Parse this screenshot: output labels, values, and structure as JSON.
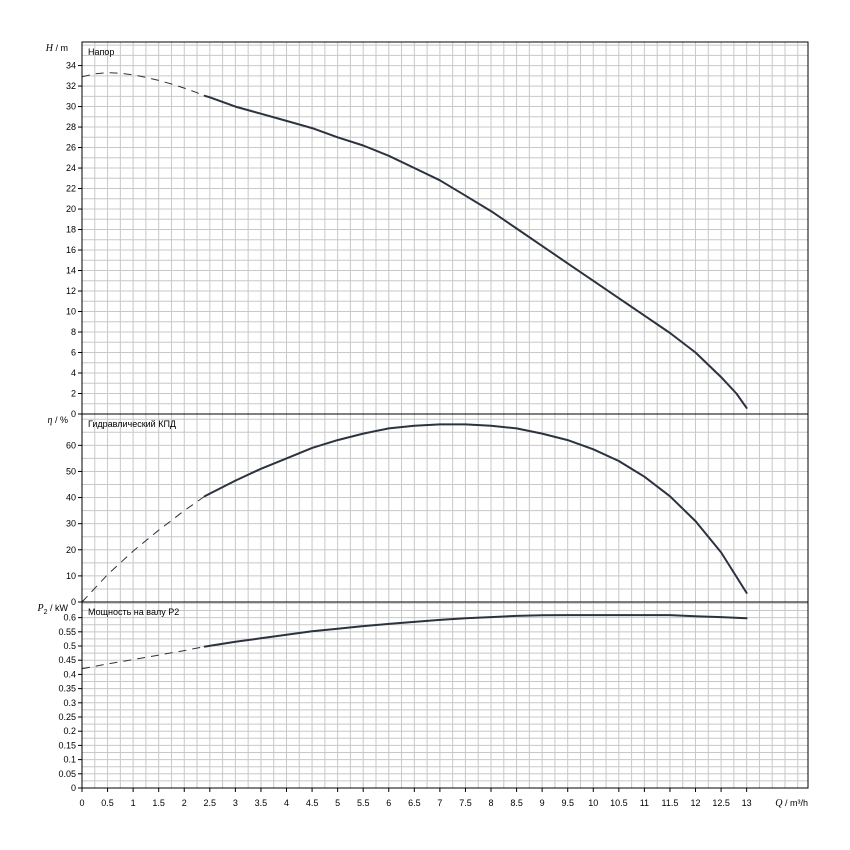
{
  "chart_data": {
    "type": "line",
    "x": {
      "label_symbol": "Q",
      "label_unit": "m³/h",
      "range": [
        0,
        14.2
      ],
      "ticks": [
        0,
        0.5,
        1,
        1.5,
        2,
        2.5,
        3,
        3.5,
        4,
        4.5,
        5,
        5.5,
        6,
        6.5,
        7,
        7.5,
        8,
        8.5,
        9,
        9.5,
        10,
        10.5,
        11,
        11.5,
        12,
        12.5,
        13
      ],
      "tick_labels": [
        "0",
        "0.5",
        "1",
        "1.5",
        "2",
        "2.5",
        "3",
        "3.5",
        "4",
        "4.5",
        "5",
        "5.5",
        "6",
        "6.5",
        "7",
        "7.5",
        "8",
        "8.5",
        "9",
        "9.5",
        "10",
        "10.5",
        "11",
        "11.5",
        "12",
        "12.5",
        "13"
      ]
    },
    "grid": true,
    "panels": [
      {
        "key": "head",
        "title": "Напор",
        "ylabel_symbol": "H",
        "ylabel_unit": "m",
        "ylim": [
          0,
          36.3
        ],
        "yticks": [
          0,
          2,
          4,
          6,
          8,
          10,
          12,
          14,
          16,
          18,
          20,
          22,
          24,
          26,
          28,
          30,
          32,
          34
        ],
        "ytick_labels": [
          "0",
          "2",
          "4",
          "6",
          "8",
          "10",
          "12",
          "14",
          "16",
          "18",
          "20",
          "22",
          "24",
          "26",
          "28",
          "30",
          "32",
          "34"
        ],
        "series": [
          {
            "style": "dashed",
            "x": [
              0,
              0.25,
              0.5,
              0.75,
              1.0,
              1.25,
              1.5,
              1.75,
              2.0,
              2.25,
              2.4
            ],
            "y": [
              32.9,
              33.2,
              33.3,
              33.25,
              33.1,
              32.85,
              32.55,
              32.2,
              31.8,
              31.35,
              31.05
            ]
          },
          {
            "style": "solid",
            "x": [
              2.4,
              2.5,
              3,
              3.5,
              4,
              4.5,
              5,
              5.5,
              6,
              6.5,
              7,
              7.5,
              8,
              8.5,
              9,
              9.5,
              10,
              10.5,
              11,
              11.5,
              12,
              12.5,
              12.8,
              13
            ],
            "y": [
              31.05,
              30.9,
              30.0,
              29.3,
              28.6,
              27.9,
              27.0,
              26.2,
              25.2,
              24.0,
              22.8,
              21.3,
              19.8,
              18.1,
              16.4,
              14.7,
              13.0,
              11.3,
              9.6,
              7.9,
              6.0,
              3.6,
              2.0,
              0.6
            ]
          }
        ]
      },
      {
        "key": "efficiency",
        "title": "Гидравлический КПД",
        "ylabel_symbol": "η",
        "ylabel_unit": "%",
        "ylim": [
          0,
          72
        ],
        "yticks": [
          0,
          10,
          20,
          30,
          40,
          50,
          60
        ],
        "ytick_labels": [
          "0",
          "10",
          "20",
          "30",
          "40",
          "50",
          "60"
        ],
        "series": [
          {
            "style": "dashed",
            "x": [
              0,
              0.5,
              1.0,
              1.5,
              2.0,
              2.4
            ],
            "y": [
              0,
              10.5,
              19.5,
              27.5,
              35.0,
              40.5
            ]
          },
          {
            "style": "solid",
            "x": [
              2.4,
              2.5,
              3,
              3.5,
              4,
              4.5,
              5,
              5.5,
              6,
              6.5,
              7,
              7.5,
              8,
              8.5,
              9,
              9.5,
              10,
              10.5,
              11,
              11.5,
              12,
              12.5,
              13
            ],
            "y": [
              40.5,
              41.5,
              46.5,
              51,
              55,
              59,
              62,
              64.5,
              66.5,
              67.5,
              68,
              68,
              67.5,
              66.5,
              64.5,
              62,
              58.5,
              54,
              48,
              40.5,
              31,
              19,
              3.5
            ]
          }
        ]
      },
      {
        "key": "power",
        "title": "Мощность на валу P2",
        "ylabel_symbol": "P",
        "ylabel_sub": "2",
        "ylabel_unit": "kW",
        "ylim": [
          0,
          0.655
        ],
        "yticks": [
          0,
          0.05,
          0.1,
          0.15,
          0.2,
          0.25,
          0.3,
          0.35,
          0.4,
          0.45,
          0.5,
          0.55,
          0.6
        ],
        "ytick_labels": [
          "0",
          "0.05",
          "0.1",
          "0.15",
          "0.2",
          "0.25",
          "0.3",
          "0.35",
          "0.4",
          "0.45",
          "0.5",
          "0.55",
          "0.6"
        ],
        "series": [
          {
            "style": "dashed",
            "x": [
              0,
              0.5,
              1.0,
              1.5,
              2.0,
              2.4
            ],
            "y": [
              0.42,
              0.437,
              0.452,
              0.468,
              0.484,
              0.498
            ]
          },
          {
            "style": "solid",
            "x": [
              2.4,
              3,
              3.5,
              4,
              4.5,
              5,
              5.5,
              6,
              6.5,
              7,
              7.5,
              8,
              8.5,
              9,
              9.5,
              10,
              10.5,
              11,
              11.5,
              12,
              12.5,
              13
            ],
            "y": [
              0.498,
              0.515,
              0.527,
              0.54,
              0.552,
              0.561,
              0.57,
              0.578,
              0.585,
              0.592,
              0.598,
              0.602,
              0.606,
              0.608,
              0.609,
              0.609,
              0.609,
              0.609,
              0.609,
              0.605,
              0.602,
              0.598
            ]
          }
        ]
      }
    ]
  }
}
